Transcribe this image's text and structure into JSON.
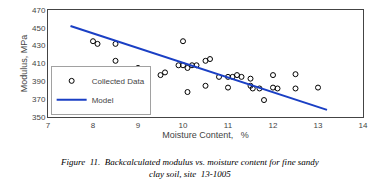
{
  "chart_data": {
    "type": "scatter",
    "xlabel": "Moisture Content,   %",
    "ylabel": "Modulus, MPa",
    "series": [
      {
        "name": "Collected Data",
        "type": "scatter",
        "marker": "circle-open",
        "color": "black",
        "x": [
          8.0,
          8.1,
          8.5,
          8.5,
          9.0,
          9.5,
          9.6,
          9.9,
          10.0,
          10.0,
          10.1,
          10.1,
          10.2,
          10.3,
          10.5,
          10.5,
          10.6,
          10.8,
          11.0,
          11.0,
          11.1,
          11.2,
          11.3,
          11.5,
          11.5,
          11.55,
          11.7,
          11.8,
          12.0,
          12.0,
          12.1,
          12.5,
          12.5,
          13.0
        ],
        "values": [
          435,
          432,
          432,
          413,
          405,
          397,
          400,
          408,
          435,
          408,
          405,
          378,
          408,
          408,
          413,
          385,
          415,
          395,
          395,
          383,
          395,
          397,
          395,
          393,
          385,
          382,
          382,
          369,
          397,
          383,
          382,
          398,
          382,
          383
        ]
      },
      {
        "name": "Model",
        "type": "line",
        "color": "#1a3fc4",
        "x": [
          7.5,
          13.2
        ],
        "values": [
          452,
          358
        ]
      }
    ],
    "xlim": [
      7,
      14
    ],
    "ylim": [
      350,
      470
    ],
    "xticks": [
      7,
      8,
      9,
      10,
      11,
      12,
      13,
      14
    ],
    "yticks": [
      350,
      370,
      390,
      410,
      430,
      450,
      470
    ],
    "grid": false,
    "legend": "lower left",
    "annotations": [
      "Figure  11.  Backcalculated modulus vs. moisture content for fine sandy",
      "clay soil, site  13-1005"
    ]
  }
}
